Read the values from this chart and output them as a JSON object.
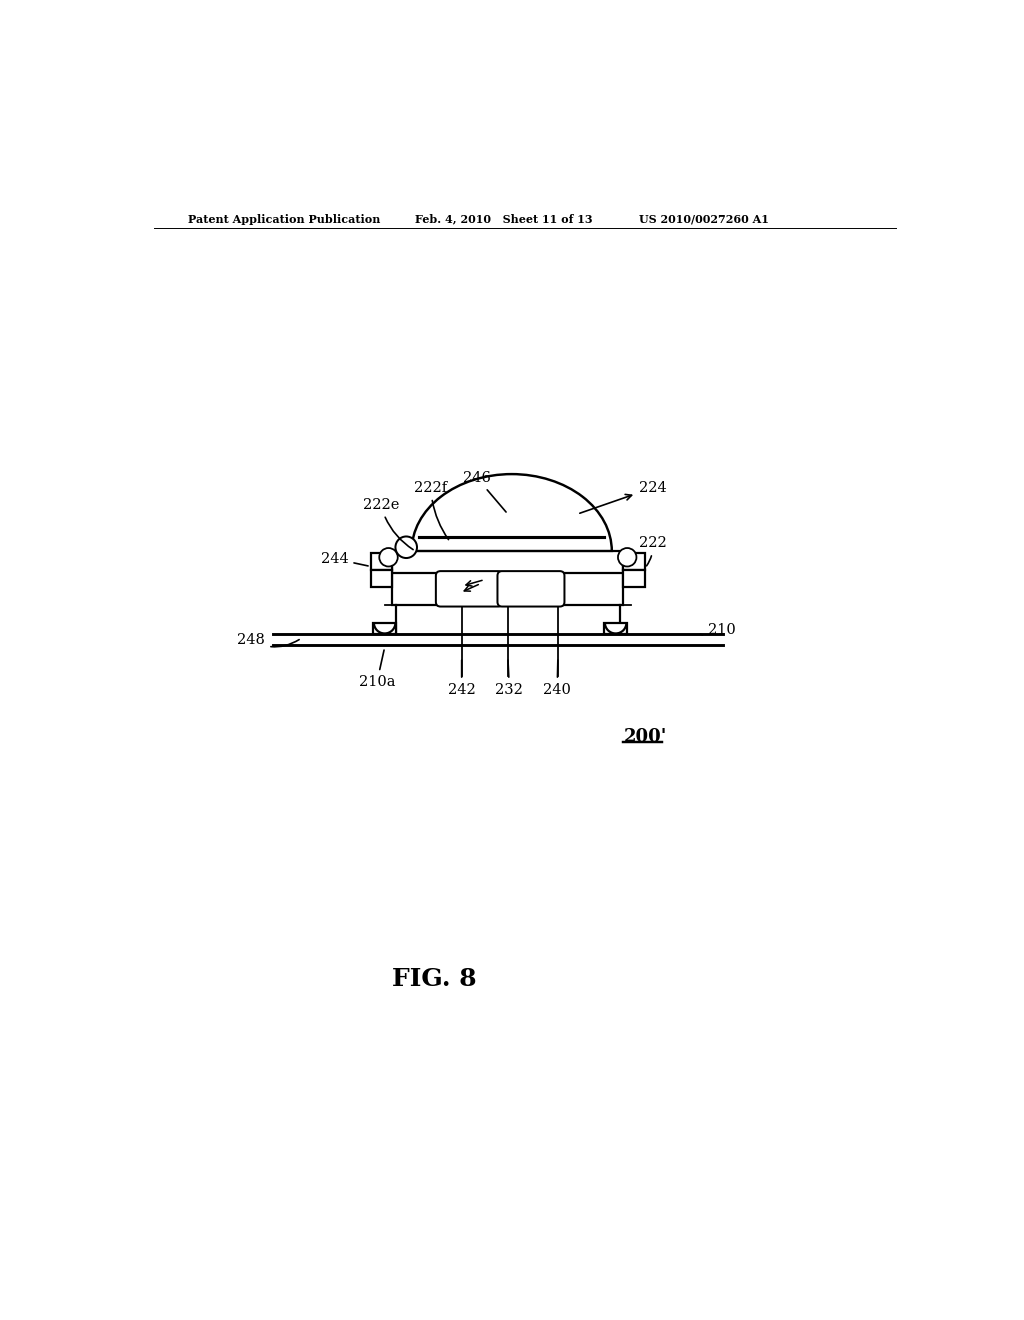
{
  "bg_color": "#ffffff",
  "header_left": "Patent Application Publication",
  "header_mid": "Feb. 4, 2010   Sheet 11 of 13",
  "header_right": "US 2010/0027260 A1",
  "fig_label": "FIG. 8",
  "model_label": "200'",
  "line_color": "#000000",
  "line_width": 1.6
}
